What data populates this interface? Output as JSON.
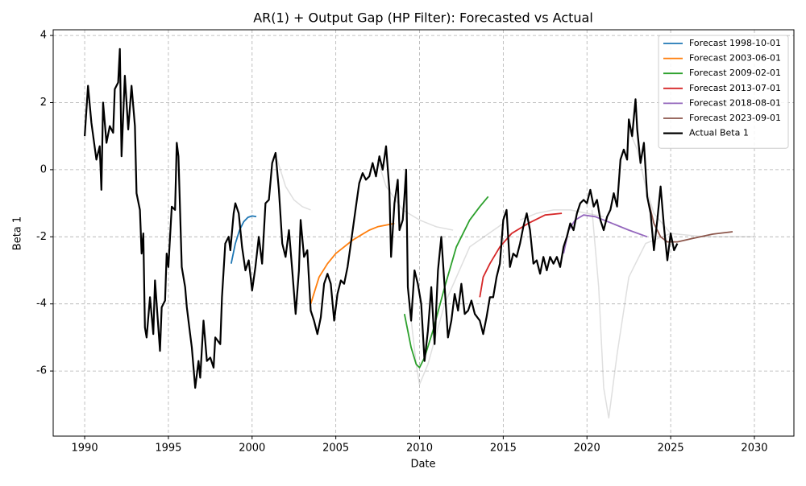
{
  "chart_data": {
    "type": "line",
    "title": "AR(1) + Output Gap (HP Filter): Forecasted vs Actual",
    "x_label": "Date",
    "y_label": "Beta 1",
    "xlim": [
      1988.12,
      2032.36
    ],
    "ylim": [
      -7.94,
      4.17
    ],
    "xticks": [
      1990,
      1995,
      2000,
      2005,
      2010,
      2015,
      2020,
      2025,
      2030
    ],
    "yticks": [
      -6,
      -4,
      -2,
      0,
      2,
      4
    ],
    "grid": true,
    "legend": "upper right",
    "series": [
      {
        "color": "#808080",
        "x": [
          2020.3,
          2020.7,
          2021.0,
          2021.3,
          2021.8,
          2022.5,
          2023.5,
          2025
        ],
        "values": [
          -1.2,
          -3.5,
          -6.5,
          -7.4,
          -5.5,
          -3.2,
          -2.2,
          -1.9
        ]
      },
      {
        "color": "#808080",
        "x": [
          2009.3,
          2009.8,
          2010.0,
          2010.5,
          2011.5,
          2013,
          2015
        ],
        "values": [
          -3.6,
          -5.8,
          -6.4,
          -5.8,
          -4,
          -2.3,
          -1.6
        ]
      },
      {
        "color": "#808080",
        "x": [
          2001.5,
          2002,
          2002.5,
          2003,
          2003.5
        ],
        "values": [
          0.3,
          -0.5,
          -0.9,
          -1.1,
          -1.2
        ]
      },
      {
        "color": "#808080",
        "x": [
          2022.5,
          2023,
          2023.5,
          2024,
          2025,
          2027,
          2030
        ],
        "values": [
          1.2,
          0.6,
          -0.5,
          -1.3,
          -1.9,
          -2.0,
          -2.0
        ]
      },
      {
        "color": "#808080",
        "x": [
          2007.5,
          2008,
          2009,
          2010,
          2011,
          2012
        ],
        "values": [
          0.3,
          -0.5,
          -1.2,
          -1.5,
          -1.7,
          -1.8
        ]
      },
      {
        "color": "#808080",
        "x": [
          2016,
          2017,
          2018,
          2019,
          2020,
          2021
        ],
        "values": [
          -1.5,
          -1.3,
          -1.2,
          -1.2,
          -1.3,
          -1.4
        ]
      },
      {
        "name": "Forecast 1998-10-01",
        "color": "#1f77b4",
        "x": [
          1998.75,
          1999.0,
          1999.25,
          1999.5,
          1999.75,
          2000.0,
          2000.25
        ],
        "values": [
          -2.8,
          -2.2,
          -1.8,
          -1.55,
          -1.42,
          -1.38,
          -1.4
        ]
      },
      {
        "name": "Forecast 2003-06-01",
        "color": "#ff7f0e",
        "x": [
          2003.5,
          2004,
          2004.5,
          2005,
          2005.5,
          2006,
          2006.5,
          2007,
          2007.5,
          2008,
          2008.5
        ],
        "values": [
          -4.0,
          -3.2,
          -2.8,
          -2.5,
          -2.3,
          -2.1,
          -1.95,
          -1.8,
          -1.7,
          -1.65,
          -1.6
        ]
      },
      {
        "name": "Forecast 2009-02-01",
        "color": "#2ca02c",
        "x": [
          2009.1,
          2009.5,
          2009.8,
          2010.0,
          2010.3,
          2010.8,
          2011.5,
          2012.2,
          2013,
          2013.6,
          2014.1
        ],
        "values": [
          -4.3,
          -5.3,
          -5.8,
          -5.9,
          -5.6,
          -4.8,
          -3.5,
          -2.3,
          -1.5,
          -1.1,
          -0.8
        ]
      },
      {
        "name": "Forecast 2013-07-01",
        "color": "#d62728",
        "x": [
          2013.6,
          2013.8,
          2014.2,
          2014.8,
          2015.5,
          2016.5,
          2017.5,
          2018.5
        ],
        "values": [
          -3.8,
          -3.2,
          -2.8,
          -2.3,
          -1.9,
          -1.6,
          -1.35,
          -1.3
        ]
      },
      {
        "name": "Forecast 2018-08-01",
        "color": "#9467bd",
        "x": [
          2018.6,
          2018.9,
          2019.3,
          2019.8,
          2020.5,
          2021.5,
          2022.5,
          2023.6
        ],
        "values": [
          -2.5,
          -1.8,
          -1.5,
          -1.35,
          -1.4,
          -1.6,
          -1.8,
          -2.0
        ]
      },
      {
        "name": "Forecast 2023-09-01",
        "color": "#8c564b",
        "x": [
          2023.7,
          2024.0,
          2024.4,
          2024.8,
          2025.4,
          2026.3,
          2027.5,
          2028.7
        ],
        "values": [
          -1.0,
          -1.6,
          -2.0,
          -2.15,
          -2.15,
          -2.05,
          -1.92,
          -1.85
        ]
      },
      {
        "name": "Actual Beta 1",
        "color": "#000000",
        "linewidth": 2.2,
        "x": [
          1990.0,
          1990.2,
          1990.4,
          1990.7,
          1990.9,
          1991.0,
          1991.1,
          1991.3,
          1991.5,
          1991.7,
          1991.8,
          1992.0,
          1992.1,
          1992.2,
          1992.4,
          1992.6,
          1992.8,
          1993.0,
          1993.1,
          1993.3,
          1993.4,
          1993.5,
          1993.6,
          1993.7,
          1993.9,
          1994.1,
          1994.2,
          1994.5,
          1994.6,
          1994.8,
          1994.9,
          1995.0,
          1995.2,
          1995.4,
          1995.5,
          1995.6,
          1995.8,
          1996.0,
          1996.1,
          1996.3,
          1996.4,
          1996.6,
          1996.8,
          1996.9,
          1997.1,
          1997.3,
          1997.5,
          1997.7,
          1997.8,
          1998.1,
          1998.2,
          1998.4,
          1998.6,
          1998.7,
          1998.9,
          1999.0,
          1999.2,
          1999.4,
          1999.6,
          1999.8,
          2000.0,
          2000.2,
          2000.4,
          2000.6,
          2000.8,
          2001.0,
          2001.2,
          2001.4,
          2001.6,
          2001.8,
          2002.0,
          2002.2,
          2002.4,
          2002.6,
          2002.8,
          2002.9,
          2003.1,
          2003.3,
          2003.5,
          2003.7,
          2003.9,
          2004.1,
          2004.3,
          2004.5,
          2004.7,
          2004.9,
          2005.1,
          2005.3,
          2005.5,
          2005.7,
          2005.9,
          2006.2,
          2006.4,
          2006.6,
          2006.8,
          2007.0,
          2007.2,
          2007.4,
          2007.6,
          2007.8,
          2008.0,
          2008.2,
          2008.3,
          2008.5,
          2008.7,
          2008.8,
          2009.0,
          2009.1,
          2009.2,
          2009.3,
          2009.5,
          2009.7,
          2009.9,
          2010.1,
          2010.3,
          2010.5,
          2010.7,
          2010.9,
          2011.1,
          2011.3,
          2011.5,
          2011.7,
          2011.9,
          2012.1,
          2012.3,
          2012.5,
          2012.7,
          2012.9,
          2013.1,
          2013.3,
          2013.6,
          2013.8,
          2014.0,
          2014.2,
          2014.4,
          2014.6,
          2014.8,
          2015.0,
          2015.2,
          2015.4,
          2015.6,
          2015.8,
          2016.0,
          2016.2,
          2016.4,
          2016.6,
          2016.8,
          2017.0,
          2017.2,
          2017.4,
          2017.6,
          2017.8,
          2018.0,
          2018.2,
          2018.4,
          2018.6,
          2018.8,
          2019.0,
          2019.2,
          2019.4,
          2019.6,
          2019.8,
          2020.0,
          2020.2,
          2020.4,
          2020.6,
          2020.8,
          2021.0,
          2021.2,
          2021.4,
          2021.6,
          2021.8,
          2022.0,
          2022.2,
          2022.4,
          2022.5,
          2022.7,
          2022.9,
          2023.0,
          2023.2,
          2023.4,
          2023.6,
          2023.8,
          2024.0,
          2024.2,
          2024.4,
          2024.6,
          2024.8,
          2025.0,
          2025.2,
          2025.4
        ],
        "values": [
          1.0,
          2.5,
          1.4,
          0.3,
          0.7,
          -0.6,
          2.0,
          0.8,
          1.3,
          1.1,
          2.4,
          2.6,
          3.6,
          0.4,
          2.8,
          1.2,
          2.5,
          1.3,
          -0.7,
          -1.2,
          -2.5,
          -1.9,
          -4.7,
          -5.0,
          -3.8,
          -4.9,
          -3.3,
          -5.4,
          -4.1,
          -3.9,
          -2.5,
          -2.9,
          -1.1,
          -1.2,
          0.8,
          0.4,
          -2.9,
          -3.5,
          -4.1,
          -4.9,
          -5.3,
          -6.5,
          -5.7,
          -6.2,
          -4.5,
          -5.7,
          -5.6,
          -5.9,
          -5.0,
          -5.2,
          -3.8,
          -2.2,
          -2.0,
          -2.4,
          -1.3,
          -1.0,
          -1.3,
          -2.3,
          -3.0,
          -2.7,
          -3.6,
          -2.9,
          -2.0,
          -2.8,
          -1.0,
          -0.9,
          0.2,
          0.5,
          -0.6,
          -2.2,
          -2.6,
          -1.8,
          -3.0,
          -4.3,
          -3.0,
          -1.5,
          -2.6,
          -2.4,
          -4.2,
          -4.5,
          -4.9,
          -4.4,
          -3.4,
          -3.1,
          -3.4,
          -4.5,
          -3.7,
          -3.3,
          -3.4,
          -2.9,
          -2.2,
          -1.1,
          -0.4,
          -0.1,
          -0.3,
          -0.2,
          0.2,
          -0.2,
          0.4,
          0.0,
          0.7,
          -0.6,
          -2.6,
          -1.0,
          -0.3,
          -1.8,
          -1.5,
          -0.8,
          0.0,
          -3.5,
          -4.5,
          -3.0,
          -3.4,
          -4.0,
          -5.7,
          -4.8,
          -3.5,
          -5.2,
          -3.0,
          -2.0,
          -3.5,
          -5.0,
          -4.5,
          -3.7,
          -4.2,
          -3.4,
          -4.3,
          -4.2,
          -3.9,
          -4.3,
          -4.5,
          -4.9,
          -4.4,
          -3.8,
          -3.8,
          -3.2,
          -2.8,
          -1.5,
          -1.2,
          -2.9,
          -2.5,
          -2.6,
          -2.2,
          -1.7,
          -1.3,
          -1.8,
          -2.8,
          -2.7,
          -3.1,
          -2.6,
          -3.0,
          -2.6,
          -2.8,
          -2.6,
          -2.9,
          -2.3,
          -2.0,
          -1.6,
          -1.8,
          -1.3,
          -1.0,
          -0.9,
          -1.0,
          -0.6,
          -1.1,
          -0.9,
          -1.5,
          -1.8,
          -1.4,
          -1.2,
          -0.7,
          -1.1,
          0.3,
          0.6,
          0.3,
          1.5,
          1.0,
          2.1,
          1.2,
          0.2,
          0.8,
          -0.8,
          -1.3,
          -2.4,
          -1.5,
          -0.5,
          -1.7,
          -2.7,
          -1.9,
          -2.4,
          -2.2
        ]
      }
    ]
  }
}
